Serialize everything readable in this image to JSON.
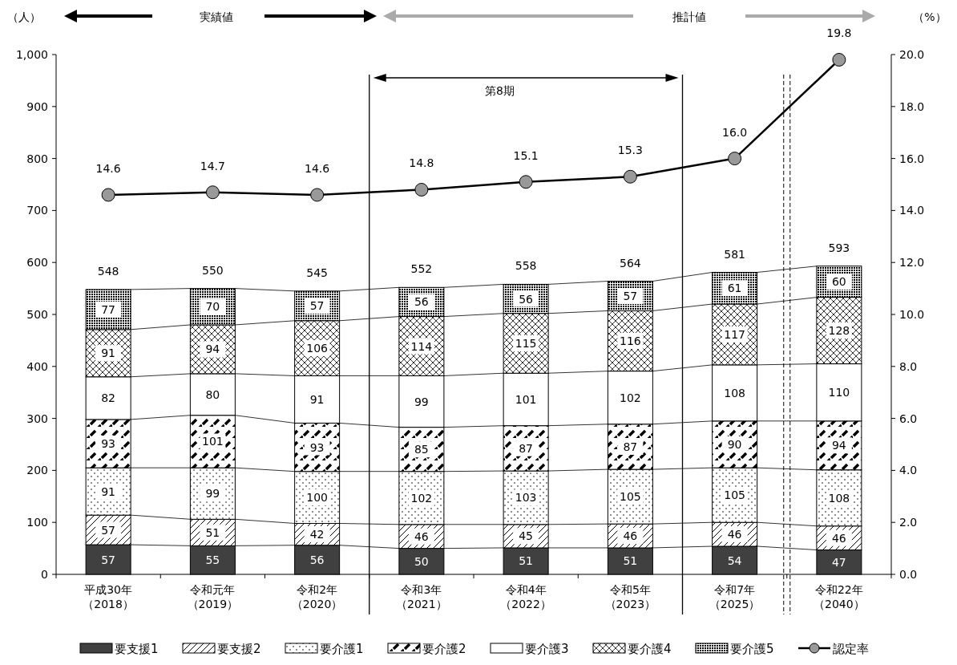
{
  "chart_data": {
    "type": "bar",
    "stacked": true,
    "ylabel": "（人）",
    "y2label": "（%）",
    "annotations": [
      "実績値",
      "推計値",
      "第8期"
    ],
    "categories": [
      "平成30年（2018）",
      "令和元年（2019）",
      "令和2年（2020）",
      "令和3年（2021）",
      "令和4年（2022）",
      "令和5年（2023）",
      "令和7年（2025）",
      "令和22年（2040）"
    ],
    "series": [
      {
        "name": "要支援1",
        "color": "#404040",
        "values": [
          57,
          55,
          56,
          50,
          51,
          51,
          54,
          47
        ]
      },
      {
        "name": "要支援2",
        "color": "#000000",
        "values": [
          57,
          51,
          42,
          46,
          45,
          46,
          46,
          46
        ]
      },
      {
        "name": "要介護1",
        "color": "#000000",
        "values": [
          91,
          99,
          100,
          102,
          103,
          105,
          105,
          108
        ]
      },
      {
        "name": "要介護2",
        "color": "#000000",
        "values": [
          93,
          101,
          93,
          85,
          87,
          87,
          90,
          94
        ]
      },
      {
        "name": "要介護3",
        "color": "#ffffff",
        "values": [
          82,
          80,
          91,
          99,
          101,
          102,
          108,
          110
        ]
      },
      {
        "name": "要介護4",
        "color": "#000000",
        "values": [
          91,
          94,
          106,
          114,
          115,
          116,
          117,
          128
        ]
      },
      {
        "name": "要介護5",
        "color": "#000000",
        "values": [
          77,
          70,
          57,
          56,
          56,
          57,
          61,
          60
        ]
      },
      {
        "name": "認定率",
        "type": "line",
        "axis": "y2",
        "color": "#000000",
        "values": [
          14.6,
          14.7,
          14.6,
          14.8,
          15.1,
          15.3,
          16.0,
          19.8
        ],
        "value_labels": [
          "14.6",
          "14.7",
          "14.6",
          "14.8",
          "15.1",
          "15.3",
          "16.0",
          "19.8"
        ]
      }
    ],
    "data_labels": true,
    "totals": [
      "548",
      "550",
      "545",
      "552",
      "558",
      "564",
      "581",
      "593"
    ],
    "marker": "circle",
    "legend": "bottom",
    "ylim": [
      0,
      1000
    ],
    "yticks": [
      0,
      100,
      200,
      300,
      400,
      500,
      600,
      700,
      800,
      900,
      {
        "value": 1000,
        "label": "1,000"
      }
    ],
    "y2lim": [
      0,
      20
    ],
    "y2ticks": [
      {
        "value": 0,
        "label": "0.0"
      },
      {
        "value": 2,
        "label": "2.0"
      },
      {
        "value": 4,
        "label": "4.0"
      },
      {
        "value": 6,
        "label": "6.0"
      },
      {
        "value": 8,
        "label": "8.0"
      },
      {
        "value": 10,
        "label": "10.0"
      },
      {
        "value": 12,
        "label": "12.0"
      },
      {
        "value": 14,
        "label": "14.0"
      },
      {
        "value": 16,
        "label": "16.0"
      },
      {
        "value": 18,
        "label": "18.0"
      },
      {
        "value": 20,
        "label": "20.0"
      }
    ]
  }
}
